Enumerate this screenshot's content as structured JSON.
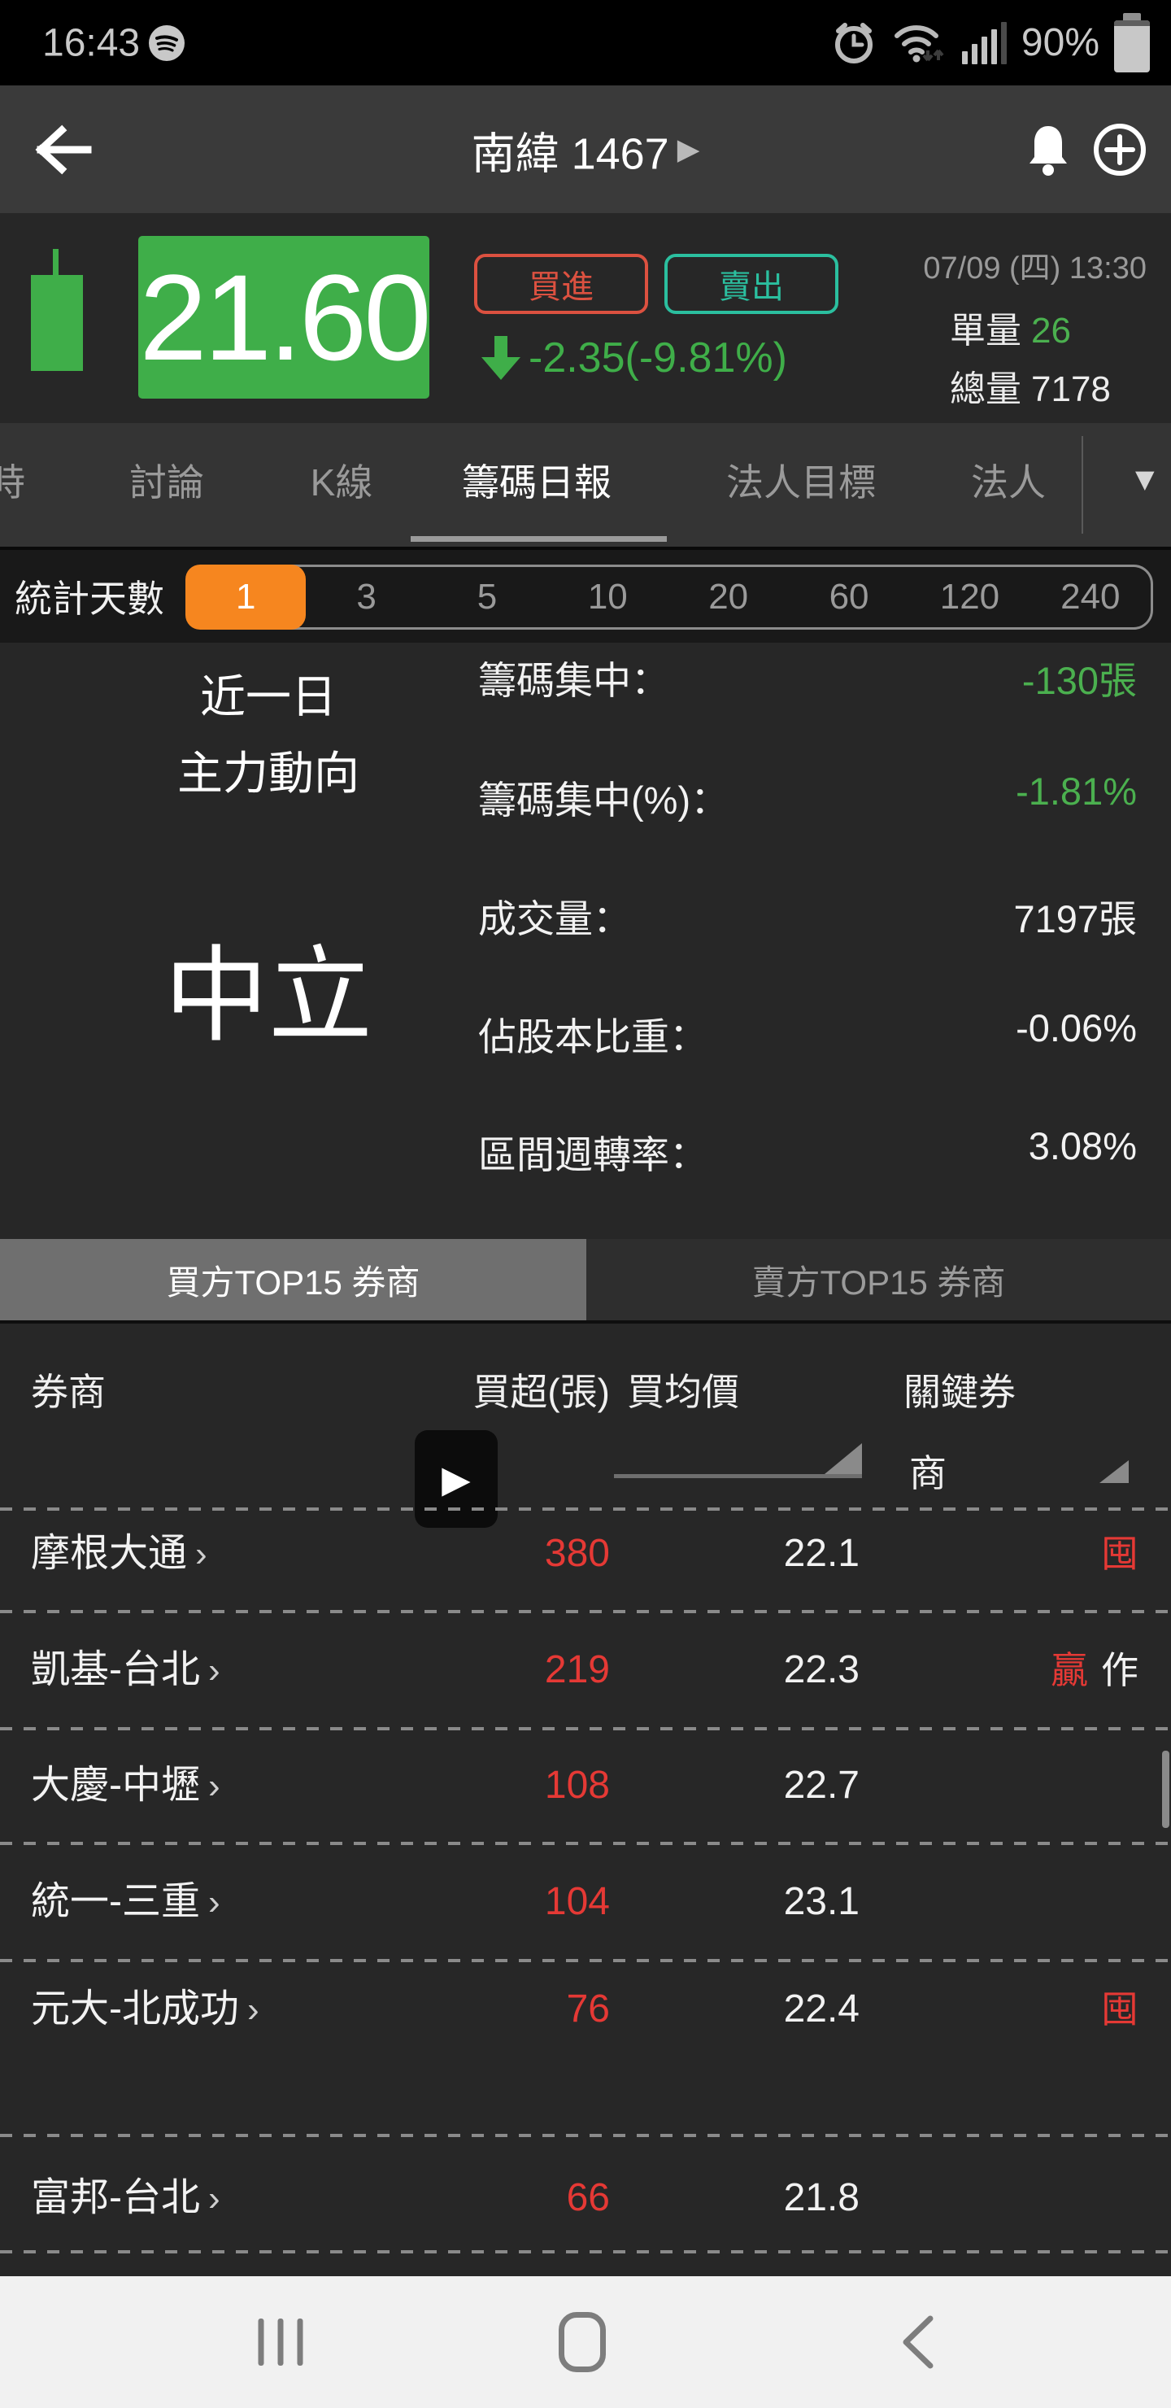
{
  "status_bar": {
    "time": "16:43",
    "battery_percent": "90%"
  },
  "nav": {
    "title": "南緯 1467"
  },
  "quote": {
    "price": "21.60",
    "buy_label": "買進",
    "sell_label": "賣出",
    "change": "-2.35(-9.81%)",
    "datetime": "07/09 (四) 13:30",
    "unit_label": "單量",
    "unit_value": "26",
    "total_label": "總量",
    "total_value": "7178"
  },
  "tabs": [
    {
      "label": "時",
      "active": false
    },
    {
      "label": "討論",
      "active": false
    },
    {
      "label": "K線",
      "active": false
    },
    {
      "label": "籌碼日報",
      "active": true
    },
    {
      "label": "法人目標",
      "active": false
    },
    {
      "label": "法人",
      "active": false
    }
  ],
  "days": {
    "label": "統計天數",
    "options": [
      "1",
      "3",
      "5",
      "10",
      "20",
      "60",
      "120",
      "240"
    ],
    "selected": "1"
  },
  "summary": {
    "period_line1": "近一日",
    "period_line2": "主力動向",
    "verdict": "中立",
    "rows": [
      {
        "label": "籌碼集中：",
        "value": "-130張",
        "color": "green"
      },
      {
        "label": "籌碼集中(%)：",
        "value": "-1.81%",
        "color": "green"
      },
      {
        "label": "成交量：",
        "value": "7197張",
        "color": "white"
      },
      {
        "label": "佔股本比重：",
        "value": "-0.06%",
        "color": "white"
      },
      {
        "label": "區間週轉率：",
        "value": "3.08%",
        "color": "white"
      }
    ]
  },
  "broker_toggle": {
    "buy": "買方TOP15 券商",
    "sell": "賣方TOP15 券商"
  },
  "table": {
    "headers": {
      "broker": "券商",
      "net_buy": "買超(張)",
      "avg_price": "買均價",
      "key_broker_line1": "關鍵券",
      "key_broker_line2": "商"
    },
    "rows": [
      {
        "name": "摩根大通",
        "net": "380",
        "avg": "22.1",
        "badges": [
          {
            "text": "囤",
            "color": "red"
          }
        ]
      },
      {
        "name": "凱基-台北",
        "net": "219",
        "avg": "22.3",
        "badges": [
          {
            "text": "贏",
            "color": "red"
          },
          {
            "text": "作",
            "color": "white"
          }
        ]
      },
      {
        "name": "大慶-中壢",
        "net": "108",
        "avg": "22.7",
        "badges": []
      },
      {
        "name": "統一-三重",
        "net": "104",
        "avg": "23.1",
        "badges": []
      },
      {
        "name": "元大-北成功",
        "net": "76",
        "avg": "22.4",
        "badges": [
          {
            "text": "囤",
            "color": "red"
          }
        ]
      },
      {
        "name": "富邦-台北",
        "net": "66",
        "avg": "21.8",
        "badges": []
      }
    ]
  },
  "icons": {
    "chevron_right": "›",
    "dropdown_triangle": "▼",
    "title_caret": "▶",
    "play_overlay": "▶"
  },
  "colors": {
    "up_down_green": "#3fae49",
    "value_green": "#4bb04f",
    "red": "#e53935",
    "buy_border": "#dc5140",
    "sell_border": "#2bbf9f",
    "selected_orange": "#f6861f"
  }
}
